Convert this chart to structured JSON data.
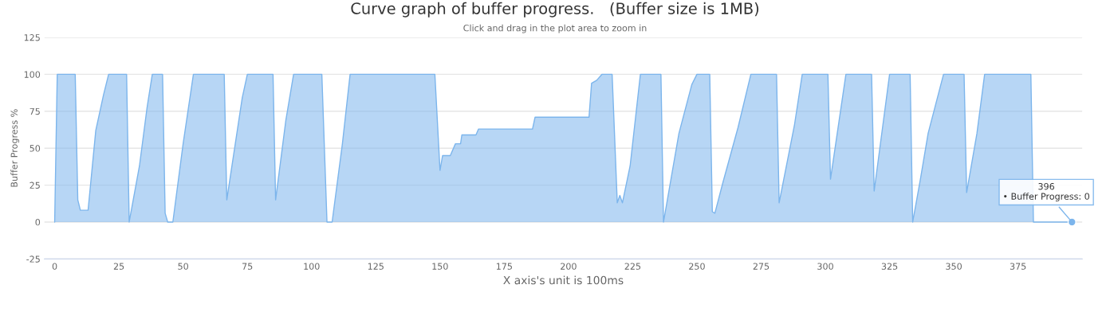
{
  "chart_data": {
    "type": "area",
    "title": "Curve graph of buffer progress.   (Buffer size is 1MB)",
    "subtitle": "Click and drag in the plot area to zoom in",
    "xlabel": "X axis's unit is 100ms",
    "ylabel": "Buffer Progress %",
    "series": [
      {
        "color": "#7cb5ec",
        "x": [
          0,
          1,
          8,
          9,
          10,
          13,
          16,
          19,
          21,
          28,
          29,
          33,
          36,
          38,
          42,
          43,
          44,
          46,
          50,
          54,
          66,
          67,
          73,
          75,
          85,
          86,
          90,
          93,
          104,
          106,
          108,
          112,
          115,
          148,
          150,
          151,
          154,
          156,
          158,
          158.5,
          164,
          165,
          186,
          187,
          208,
          209,
          211,
          213,
          217,
          219,
          220,
          221,
          224,
          228,
          236,
          237,
          243,
          248,
          250,
          255,
          256,
          257,
          260,
          266,
          271,
          281,
          282,
          288,
          291,
          301,
          302,
          308,
          318,
          319,
          325,
          333,
          334,
          337,
          340,
          346,
          354,
          355,
          359,
          362,
          380,
          381,
          396
        ],
        "values": [
          0,
          100,
          100,
          15,
          8,
          8,
          62,
          86,
          100,
          100,
          0,
          38,
          78,
          100,
          100,
          6,
          0,
          0,
          53,
          100,
          100,
          15,
          84,
          100,
          100,
          15,
          69,
          100,
          100,
          0,
          0,
          53,
          100,
          100,
          35,
          45,
          45,
          53,
          53,
          59,
          59,
          63,
          63,
          71,
          71,
          94,
          96,
          100,
          100,
          13,
          18,
          13,
          38,
          100,
          100,
          0,
          60,
          93,
          100,
          100,
          7,
          6,
          26,
          64,
          100,
          100,
          13,
          66,
          100,
          100,
          29,
          100,
          100,
          21,
          100,
          100,
          0,
          29,
          60,
          100,
          100,
          20,
          60,
          100,
          100,
          0,
          0
        ]
      }
    ],
    "annotations": [
      {
        "text": "396\n• Buffer Progress: 0",
        "x": 396,
        "y": 0
      }
    ],
    "xlim": [
      -4,
      400
    ],
    "xticks": [
      0,
      25,
      50,
      75,
      100,
      125,
      150,
      175,
      200,
      225,
      250,
      275,
      300,
      325,
      350,
      375
    ],
    "ylim": [
      -25,
      125
    ],
    "yticks": [
      -25,
      0,
      25,
      50,
      75,
      100,
      125
    ],
    "grid": "y",
    "legend": false
  }
}
